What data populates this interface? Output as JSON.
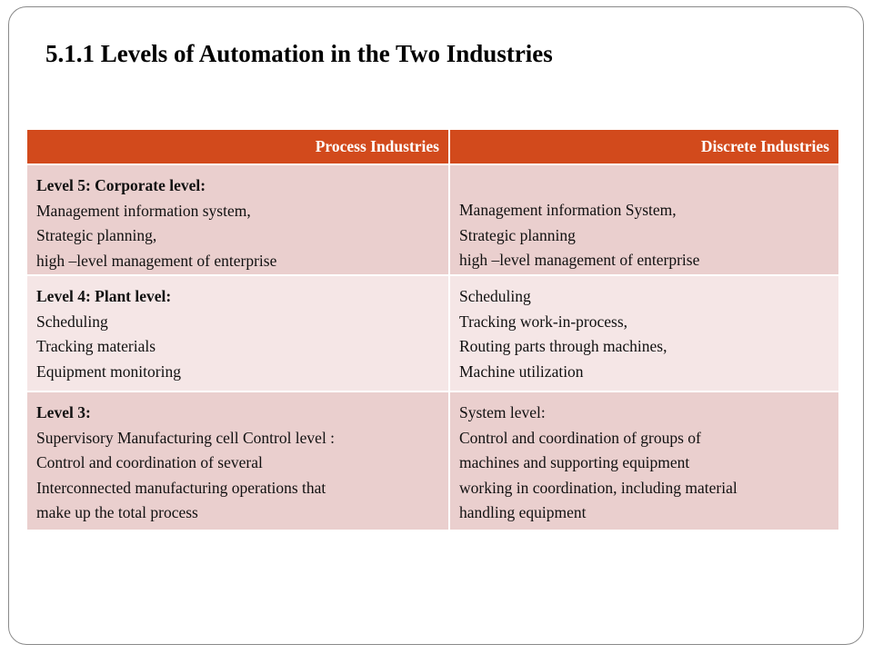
{
  "slide": {
    "title": "5.1.1 Levels of Automation in the Two Industries"
  },
  "table": {
    "headers": [
      "Process Industries",
      "Discrete Industries"
    ],
    "rows": [
      {
        "process": {
          "heading": "Level 5: Corporate level:",
          "lines": [
            "Management information system,",
            "Strategic  planning,",
            "high –level management of  enterprise"
          ]
        },
        "discrete": {
          "lines": [
            "Management information System,",
            "Strategic  planning",
            "high –level management of enterprise"
          ]
        }
      },
      {
        "process": {
          "heading": "Level 4: Plant level:",
          "lines": [
            "Scheduling",
            "Tracking materials",
            "Equipment monitoring"
          ]
        },
        "discrete": {
          "lines": [
            "Scheduling",
            "Tracking work-in-process,",
            "Routing parts through machines,",
            "Machine utilization"
          ]
        }
      },
      {
        "process": {
          "heading": "Level 3:",
          "lines": [
            "Supervisory  Manufacturing cell Control level :",
            "Control and coordination of  several",
            "Interconnected manufacturing operations that",
            "make up the total process"
          ]
        },
        "discrete": {
          "lines": [
            "System level:",
            "Control and coordination of groups of",
            "machines and supporting equipment",
            "working in coordination, including material",
            "handling equipment"
          ]
        }
      }
    ]
  }
}
